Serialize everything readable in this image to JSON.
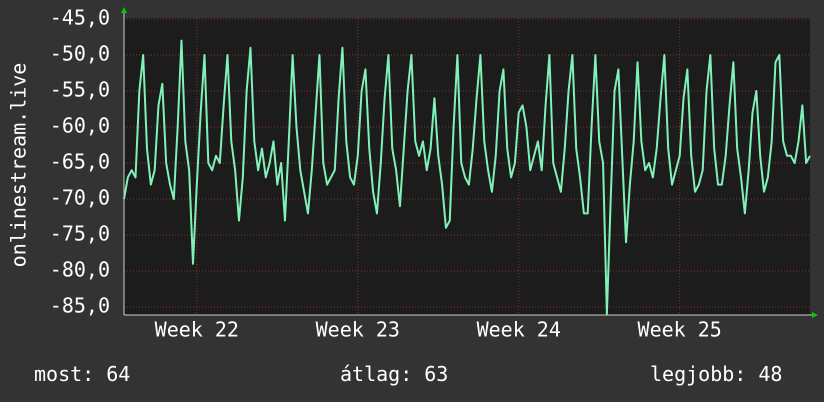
{
  "chart_data": {
    "type": "line",
    "y_label": "onlinestream.live",
    "ylim": [
      -85,
      -45
    ],
    "yticks": [
      {
        "value": -45,
        "label": "-45,0"
      },
      {
        "value": -50,
        "label": "-50,0"
      },
      {
        "value": -55,
        "label": "-55,0"
      },
      {
        "value": -60,
        "label": "-60,0"
      },
      {
        "value": -65,
        "label": "-65,0"
      },
      {
        "value": -70,
        "label": "-70,0"
      },
      {
        "value": -75,
        "label": "-75,0"
      },
      {
        "value": -80,
        "label": "-80,0"
      },
      {
        "value": -85,
        "label": "-85,0"
      }
    ],
    "xlim": [
      0,
      179
    ],
    "xticks": [
      {
        "value": 19,
        "label": "Week 22"
      },
      {
        "value": 61,
        "label": "Week 23"
      },
      {
        "value": 103,
        "label": "Week 24"
      },
      {
        "value": 145,
        "label": "Week 25"
      }
    ],
    "grid": true,
    "color": "#80f2b8",
    "values": [
      -70,
      -67,
      -66,
      -67,
      -55,
      -50,
      -63,
      -68,
      -66,
      -57,
      -54,
      -65,
      -68,
      -70,
      -60,
      -48,
      -62,
      -66,
      -79,
      -68,
      -58,
      -50,
      -65,
      -66,
      -64,
      -65,
      -57,
      -50,
      -62,
      -66,
      -73,
      -67,
      -55,
      -49,
      -62,
      -66,
      -63,
      -67,
      -65,
      -62,
      -68,
      -65,
      -73,
      -62,
      -50,
      -60,
      -66,
      -69,
      -72,
      -66,
      -58,
      -50,
      -65,
      -68,
      -67,
      -66,
      -56,
      -49,
      -62,
      -67,
      -68,
      -64,
      -55,
      -52,
      -63,
      -69,
      -72,
      -65,
      -56,
      -50,
      -63,
      -66,
      -71,
      -63,
      -55,
      -50,
      -62,
      -64,
      -62,
      -66,
      -63,
      -56,
      -64,
      -68,
      -74,
      -73,
      -60,
      -50,
      -65,
      -67,
      -68,
      -63,
      -56,
      -50,
      -62,
      -66,
      -69,
      -64,
      -55,
      -52,
      -63,
      -67,
      -65,
      -58,
      -57,
      -60,
      -66,
      -64,
      -62,
      -66,
      -57,
      -50,
      -65,
      -67,
      -69,
      -63,
      -55,
      -50,
      -63,
      -67,
      -72,
      -72,
      -60,
      -50,
      -62,
      -65,
      -86,
      -70,
      -55,
      -52,
      -64,
      -76,
      -68,
      -62,
      -51,
      -62,
      -66,
      -65,
      -67,
      -63,
      -56,
      -50,
      -63,
      -68,
      -66,
      -64,
      -56,
      -52,
      -64,
      -69,
      -68,
      -66,
      -55,
      -50,
      -63,
      -68,
      -68,
      -64,
      -57,
      -51,
      -63,
      -67,
      -72,
      -66,
      -58,
      -55,
      -64,
      -69,
      -67,
      -62,
      -51,
      -50,
      -62,
      -64,
      -64,
      -65,
      -62,
      -57,
      -65,
      -64
    ],
    "stats": [
      {
        "label": "most:",
        "value": 64
      },
      {
        "label": "átlag:",
        "value": 63
      },
      {
        "label": "legjobb:",
        "value": 48
      }
    ]
  }
}
